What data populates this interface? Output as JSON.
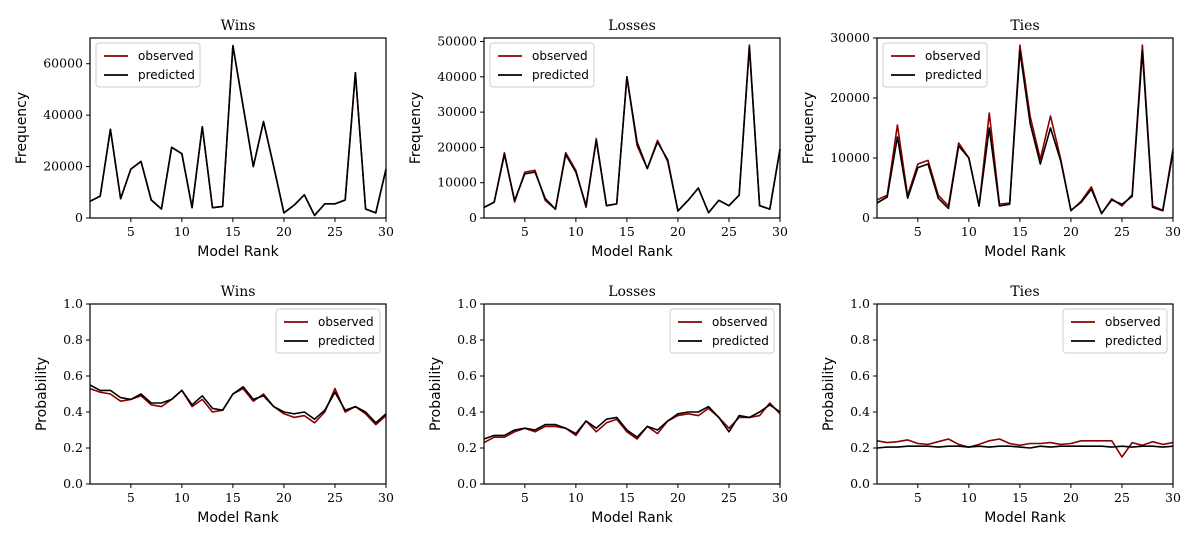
{
  "colors": {
    "observed": "#8b0000",
    "predicted": "#000000"
  },
  "chart_data": [
    {
      "type": "line",
      "title": "Wins",
      "xlabel": "Model Rank",
      "ylabel": "Frequency",
      "xlim": [
        1,
        30
      ],
      "ylim": [
        0,
        70000
      ],
      "xticks": [
        5,
        10,
        15,
        20,
        25,
        30
      ],
      "xtick_labels": [
        "5",
        "10",
        "15",
        "20",
        "25",
        "30"
      ],
      "yticks": [
        0,
        20000,
        40000,
        60000
      ],
      "ytick_labels": [
        "0",
        "20000",
        "40000",
        "60000"
      ],
      "legend": "top-left",
      "x": [
        1,
        2,
        3,
        4,
        5,
        6,
        7,
        8,
        9,
        10,
        11,
        12,
        13,
        14,
        15,
        16,
        17,
        18,
        19,
        20,
        21,
        22,
        23,
        24,
        25,
        26,
        27,
        28,
        29,
        30
      ],
      "series": [
        {
          "name": "observed",
          "values": [
            6500,
            8500,
            34500,
            7500,
            19000,
            22000,
            7000,
            3500,
            27500,
            25000,
            4000,
            35500,
            4000,
            4500,
            67000,
            43500,
            20000,
            37500,
            20000,
            2000,
            5000,
            9000,
            1000,
            5500,
            5500,
            7000,
            56500,
            3500,
            2000,
            19000
          ]
        },
        {
          "name": "predicted",
          "values": [
            6500,
            8500,
            34500,
            7500,
            19000,
            22000,
            7000,
            3500,
            27500,
            25000,
            4000,
            35500,
            4000,
            4500,
            67000,
            43500,
            20000,
            37500,
            20000,
            2000,
            5000,
            9000,
            1000,
            5500,
            5500,
            7000,
            56500,
            3500,
            2000,
            19000
          ]
        }
      ]
    },
    {
      "type": "line",
      "title": "Losses",
      "xlabel": "Model Rank",
      "ylabel": "Frequency",
      "xlim": [
        1,
        30
      ],
      "ylim": [
        0,
        51000
      ],
      "xticks": [
        5,
        10,
        15,
        20,
        25,
        30
      ],
      "xtick_labels": [
        "5",
        "10",
        "15",
        "20",
        "25",
        "30"
      ],
      "yticks": [
        0,
        10000,
        20000,
        30000,
        40000,
        50000
      ],
      "ytick_labels": [
        "0",
        "10000",
        "20000",
        "30000",
        "40000",
        "50000"
      ],
      "legend": "top-left",
      "x": [
        1,
        2,
        3,
        4,
        5,
        6,
        7,
        8,
        9,
        10,
        11,
        12,
        13,
        14,
        15,
        16,
        17,
        18,
        19,
        20,
        21,
        22,
        23,
        24,
        25,
        26,
        27,
        28,
        29,
        30
      ],
      "series": [
        {
          "name": "observed",
          "values": [
            3000,
            4500,
            18500,
            4500,
            13000,
            13500,
            5000,
            2500,
            18500,
            13500,
            3000,
            22500,
            3500,
            4000,
            40000,
            20500,
            14000,
            22000,
            16000,
            2000,
            5000,
            8500,
            1500,
            5000,
            3500,
            6500,
            49000,
            3500,
            2500,
            19500
          ]
        },
        {
          "name": "predicted",
          "values": [
            3000,
            4500,
            18000,
            5000,
            12500,
            13000,
            5500,
            2500,
            18000,
            13000,
            3500,
            22000,
            3500,
            4000,
            40000,
            21500,
            14000,
            21500,
            16500,
            2000,
            5000,
            8500,
            1500,
            5000,
            3500,
            6500,
            48500,
            3500,
            2500,
            19500
          ]
        }
      ]
    },
    {
      "type": "line",
      "title": "Ties",
      "xlabel": "Model Rank",
      "ylabel": "Frequency",
      "xlim": [
        1,
        30
      ],
      "ylim": [
        0,
        30000
      ],
      "xticks": [
        5,
        10,
        15,
        20,
        25,
        30
      ],
      "xtick_labels": [
        "5",
        "10",
        "15",
        "20",
        "25",
        "30"
      ],
      "yticks": [
        0,
        10000,
        20000,
        30000
      ],
      "ytick_labels": [
        "0",
        "10000",
        "20000",
        "30000"
      ],
      "legend": "top-left",
      "x": [
        1,
        2,
        3,
        4,
        5,
        6,
        7,
        8,
        9,
        10,
        11,
        12,
        13,
        14,
        15,
        16,
        17,
        18,
        19,
        20,
        21,
        22,
        23,
        24,
        25,
        26,
        27,
        28,
        29,
        30
      ],
      "series": [
        {
          "name": "observed",
          "values": [
            3000,
            3800,
            15500,
            3700,
            9000,
            9600,
            3800,
            2000,
            12500,
            10000,
            2000,
            17500,
            2300,
            2500,
            28800,
            17000,
            9800,
            17000,
            9800,
            1200,
            2800,
            5200,
            700,
            3200,
            2000,
            3900,
            28800,
            2000,
            1300,
            11500
          ]
        },
        {
          "name": "predicted",
          "values": [
            2500,
            3500,
            13500,
            3300,
            8400,
            9000,
            3300,
            1600,
            12000,
            10000,
            2000,
            15000,
            2000,
            2300,
            27800,
            15800,
            9000,
            15000,
            9500,
            1300,
            2600,
            4800,
            800,
            3000,
            2300,
            3600,
            27800,
            1800,
            1200,
            11000
          ]
        }
      ]
    },
    {
      "type": "line",
      "title": "Wins",
      "xlabel": "Model Rank",
      "ylabel": "Probability",
      "xlim": [
        1,
        30
      ],
      "ylim": [
        0,
        1
      ],
      "xticks": [
        5,
        10,
        15,
        20,
        25,
        30
      ],
      "xtick_labels": [
        "5",
        "10",
        "15",
        "20",
        "25",
        "30"
      ],
      "yticks": [
        0,
        0.2,
        0.4,
        0.6,
        0.8,
        1.0
      ],
      "ytick_labels": [
        "0.0",
        "0.2",
        "0.4",
        "0.6",
        "0.8",
        "1.0"
      ],
      "legend": "top-right",
      "x": [
        1,
        2,
        3,
        4,
        5,
        6,
        7,
        8,
        9,
        10,
        11,
        12,
        13,
        14,
        15,
        16,
        17,
        18,
        19,
        20,
        21,
        22,
        23,
        24,
        25,
        26,
        27,
        28,
        29,
        30
      ],
      "series": [
        {
          "name": "observed",
          "values": [
            0.53,
            0.51,
            0.5,
            0.46,
            0.47,
            0.49,
            0.44,
            0.43,
            0.47,
            0.52,
            0.43,
            0.47,
            0.4,
            0.41,
            0.5,
            0.53,
            0.46,
            0.5,
            0.43,
            0.39,
            0.37,
            0.38,
            0.34,
            0.4,
            0.53,
            0.4,
            0.43,
            0.39,
            0.33,
            0.38
          ]
        },
        {
          "name": "predicted",
          "values": [
            0.55,
            0.52,
            0.52,
            0.48,
            0.47,
            0.5,
            0.45,
            0.45,
            0.47,
            0.52,
            0.44,
            0.49,
            0.42,
            0.41,
            0.5,
            0.54,
            0.47,
            0.49,
            0.43,
            0.4,
            0.39,
            0.4,
            0.36,
            0.41,
            0.51,
            0.41,
            0.43,
            0.4,
            0.34,
            0.39
          ]
        }
      ]
    },
    {
      "type": "line",
      "title": "Losses",
      "xlabel": "Model Rank",
      "ylabel": "Probability",
      "xlim": [
        1,
        30
      ],
      "ylim": [
        0,
        1
      ],
      "xticks": [
        5,
        10,
        15,
        20,
        25,
        30
      ],
      "xtick_labels": [
        "5",
        "10",
        "15",
        "20",
        "25",
        "30"
      ],
      "yticks": [
        0,
        0.2,
        0.4,
        0.6,
        0.8,
        1.0
      ],
      "ytick_labels": [
        "0.0",
        "0.2",
        "0.4",
        "0.6",
        "0.8",
        "1.0"
      ],
      "legend": "top-right",
      "x": [
        1,
        2,
        3,
        4,
        5,
        6,
        7,
        8,
        9,
        10,
        11,
        12,
        13,
        14,
        15,
        16,
        17,
        18,
        19,
        20,
        21,
        22,
        23,
        24,
        25,
        26,
        27,
        28,
        29,
        30
      ],
      "series": [
        {
          "name": "observed",
          "values": [
            0.23,
            0.26,
            0.26,
            0.29,
            0.31,
            0.29,
            0.32,
            0.32,
            0.31,
            0.27,
            0.35,
            0.29,
            0.34,
            0.36,
            0.29,
            0.25,
            0.32,
            0.28,
            0.35,
            0.38,
            0.39,
            0.38,
            0.42,
            0.37,
            0.31,
            0.37,
            0.37,
            0.38,
            0.45,
            0.39
          ]
        },
        {
          "name": "predicted",
          "values": [
            0.25,
            0.27,
            0.27,
            0.3,
            0.31,
            0.3,
            0.33,
            0.33,
            0.31,
            0.28,
            0.35,
            0.31,
            0.36,
            0.37,
            0.3,
            0.26,
            0.32,
            0.3,
            0.35,
            0.39,
            0.4,
            0.4,
            0.43,
            0.37,
            0.29,
            0.38,
            0.37,
            0.4,
            0.44,
            0.4
          ]
        }
      ]
    },
    {
      "type": "line",
      "title": "Ties",
      "xlabel": "Model Rank",
      "ylabel": "Probability",
      "xlim": [
        1,
        30
      ],
      "ylim": [
        0,
        1
      ],
      "xticks": [
        5,
        10,
        15,
        20,
        25,
        30
      ],
      "xtick_labels": [
        "5",
        "10",
        "15",
        "20",
        "25",
        "30"
      ],
      "yticks": [
        0,
        0.2,
        0.4,
        0.6,
        0.8,
        1.0
      ],
      "ytick_labels": [
        "0.0",
        "0.2",
        "0.4",
        "0.6",
        "0.8",
        "1.0"
      ],
      "legend": "top-right",
      "x": [
        1,
        2,
        3,
        4,
        5,
        6,
        7,
        8,
        9,
        10,
        11,
        12,
        13,
        14,
        15,
        16,
        17,
        18,
        19,
        20,
        21,
        22,
        23,
        24,
        25,
        26,
        27,
        28,
        29,
        30
      ],
      "series": [
        {
          "name": "observed",
          "values": [
            0.24,
            0.23,
            0.235,
            0.245,
            0.225,
            0.22,
            0.235,
            0.25,
            0.22,
            0.205,
            0.22,
            0.24,
            0.25,
            0.225,
            0.215,
            0.225,
            0.225,
            0.23,
            0.22,
            0.225,
            0.24,
            0.24,
            0.24,
            0.24,
            0.15,
            0.23,
            0.215,
            0.235,
            0.22,
            0.23
          ]
        },
        {
          "name": "predicted",
          "values": [
            0.2,
            0.205,
            0.205,
            0.21,
            0.21,
            0.21,
            0.205,
            0.21,
            0.21,
            0.205,
            0.21,
            0.205,
            0.21,
            0.21,
            0.205,
            0.2,
            0.21,
            0.205,
            0.21,
            0.21,
            0.21,
            0.21,
            0.21,
            0.205,
            0.21,
            0.205,
            0.21,
            0.21,
            0.205,
            0.21
          ]
        }
      ]
    }
  ]
}
